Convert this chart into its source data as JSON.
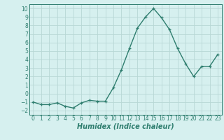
{
  "x": [
    0,
    1,
    2,
    3,
    4,
    5,
    6,
    7,
    8,
    9,
    10,
    11,
    12,
    13,
    14,
    15,
    16,
    17,
    18,
    19,
    20,
    21,
    22,
    23
  ],
  "y": [
    -1,
    -1.3,
    -1.3,
    -1.1,
    -1.5,
    -1.7,
    -1.1,
    -0.8,
    -0.9,
    -0.9,
    0.7,
    2.8,
    5.3,
    7.7,
    9.0,
    10.0,
    8.9,
    7.5,
    5.3,
    3.5,
    2.0,
    3.2,
    3.2,
    4.6
  ],
  "line_color": "#2e7d6e",
  "marker": "+",
  "marker_size": 3.5,
  "bg_color": "#d6f0ef",
  "grid_color": "#b8d8d5",
  "xlabel": "Humidex (Indice chaleur)",
  "ylim": [
    -2.5,
    10.5
  ],
  "xlim": [
    -0.5,
    23.5
  ],
  "yticks": [
    -2,
    -1,
    0,
    1,
    2,
    3,
    4,
    5,
    6,
    7,
    8,
    9,
    10
  ],
  "xticks": [
    0,
    1,
    2,
    3,
    4,
    5,
    6,
    7,
    8,
    9,
    10,
    11,
    12,
    13,
    14,
    15,
    16,
    17,
    18,
    19,
    20,
    21,
    22,
    23
  ],
  "tick_fontsize": 5.5,
  "xlabel_fontsize": 7.0,
  "line_width": 1.0
}
